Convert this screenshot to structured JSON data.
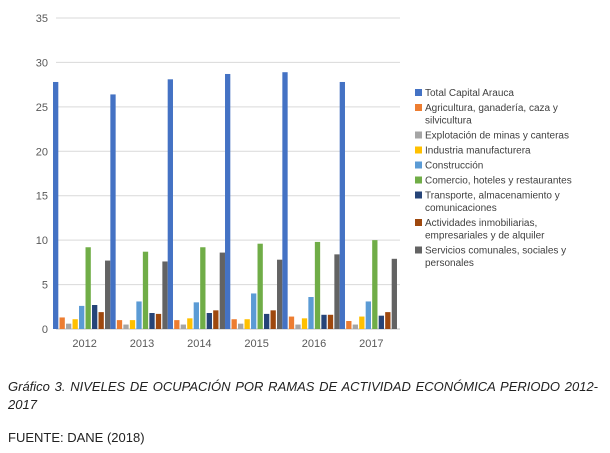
{
  "chart_data": {
    "type": "bar",
    "title": "",
    "xlabel": "",
    "ylabel": "",
    "ylim": [
      0,
      35
    ],
    "yticks": [
      0,
      5,
      10,
      15,
      20,
      25,
      30,
      35
    ],
    "grid": true,
    "legend_position": "right",
    "categories": [
      "2012",
      "2013",
      "2014",
      "2015",
      "2016",
      "2017"
    ],
    "series": [
      {
        "name": "Total Capital Arauca",
        "color": "#4472C4",
        "values": [
          27.8,
          26.4,
          28.1,
          28.7,
          28.9,
          27.8
        ]
      },
      {
        "name": "Agricultura, ganadería, caza y silvicultura",
        "color": "#ED7D31",
        "values": [
          1.3,
          1.0,
          1.0,
          1.1,
          1.4,
          0.9
        ]
      },
      {
        "name": "Explotación de minas y canteras",
        "color": "#A5A5A5",
        "values": [
          0.6,
          0.5,
          0.5,
          0.6,
          0.5,
          0.5
        ]
      },
      {
        "name": "Industria manufacturera",
        "color": "#FFC000",
        "values": [
          1.1,
          1.0,
          1.2,
          1.1,
          1.2,
          1.4
        ]
      },
      {
        "name": "Construcción",
        "color": "#5B9BD5",
        "values": [
          2.6,
          3.1,
          3.0,
          4.0,
          3.6,
          3.1
        ]
      },
      {
        "name": "Comercio, hoteles y restaurantes",
        "color": "#70AD47",
        "values": [
          9.2,
          8.7,
          9.2,
          9.6,
          9.8,
          10.0
        ]
      },
      {
        "name": "Transporte, almacenamiento y comunicaciones",
        "color": "#264478",
        "values": [
          2.7,
          1.8,
          1.8,
          1.7,
          1.6,
          1.5
        ]
      },
      {
        "name": "Actividades inmobiliarias, empresariales y de alquiler",
        "color": "#9E480E",
        "values": [
          1.9,
          1.7,
          2.1,
          2.1,
          1.6,
          1.9
        ]
      },
      {
        "name": "Servicios comunales, sociales y personales",
        "color": "#636363",
        "values": [
          7.7,
          7.6,
          8.6,
          7.8,
          8.4,
          7.9
        ]
      }
    ]
  },
  "caption": "Gráfico 3. NIVELES DE OCUPACIÓN POR RAMAS DE ACTIVIDAD ECONÓMICA PERIODO 2012-2017",
  "source": "FUENTE: DANE (2018)"
}
